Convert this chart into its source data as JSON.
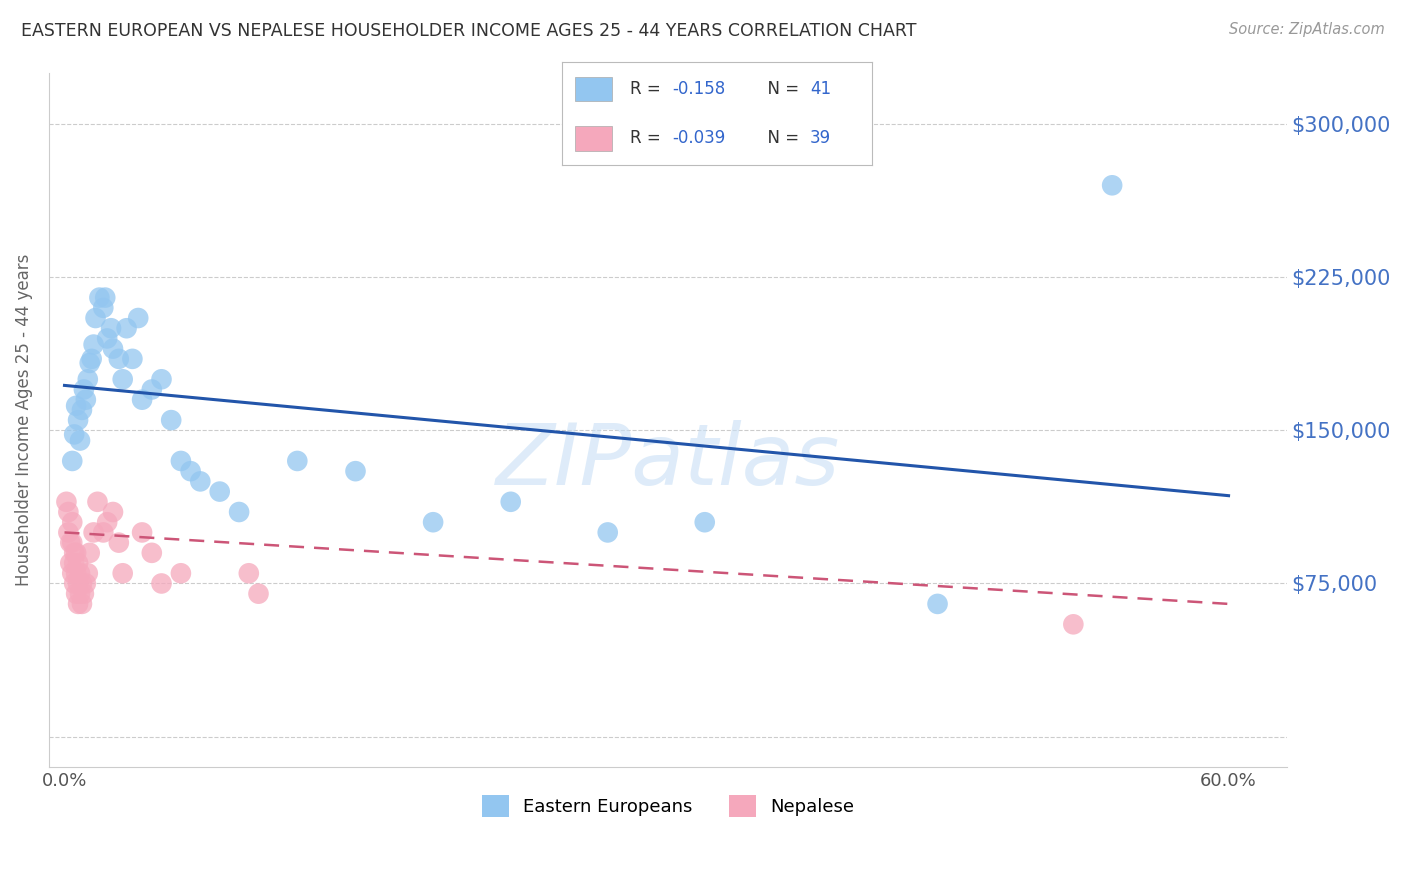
{
  "title": "EASTERN EUROPEAN VS NEPALESE HOUSEHOLDER INCOME AGES 25 - 44 YEARS CORRELATION CHART",
  "source": "Source: ZipAtlas.com",
  "ylabel": "Householder Income Ages 25 - 44 years",
  "watermark": "ZIPatlas",
  "ytick_vals": [
    0,
    75000,
    150000,
    225000,
    300000
  ],
  "ytick_labels": [
    "",
    "$75,000",
    "$150,000",
    "$225,000",
    "$300,000"
  ],
  "xtick_positions": [
    0.0,
    0.1,
    0.2,
    0.3,
    0.4,
    0.5,
    0.6
  ],
  "xtick_labels": [
    "0.0%",
    "",
    "",
    "",
    "",
    "",
    "60.0%"
  ],
  "xlim": [
    -0.008,
    0.63
  ],
  "ylim": [
    -15000,
    325000
  ],
  "legend_row1": "R =  -0.158   N = 41",
  "legend_row2": "R =  -0.039   N = 39",
  "legend_color": "#3366cc",
  "blue_scatter_color": "#93c6f0",
  "pink_scatter_color": "#f5a8bc",
  "blue_line_color": "#2255aa",
  "pink_line_color": "#cc5577",
  "grid_color": "#cccccc",
  "right_label_color": "#4472c4",
  "title_color": "#333333",
  "source_color": "#999999",
  "ee_x": [
    0.004,
    0.005,
    0.006,
    0.007,
    0.008,
    0.009,
    0.01,
    0.011,
    0.012,
    0.013,
    0.014,
    0.015,
    0.016,
    0.018,
    0.02,
    0.021,
    0.022,
    0.024,
    0.025,
    0.028,
    0.03,
    0.032,
    0.035,
    0.038,
    0.04,
    0.045,
    0.05,
    0.055,
    0.06,
    0.065,
    0.07,
    0.08,
    0.09,
    0.12,
    0.15,
    0.19,
    0.23,
    0.28,
    0.33,
    0.45,
    0.54
  ],
  "ee_y": [
    135000,
    148000,
    162000,
    155000,
    145000,
    160000,
    170000,
    165000,
    175000,
    183000,
    185000,
    192000,
    205000,
    215000,
    210000,
    215000,
    195000,
    200000,
    190000,
    185000,
    175000,
    200000,
    185000,
    205000,
    165000,
    170000,
    175000,
    155000,
    135000,
    130000,
    125000,
    120000,
    110000,
    135000,
    130000,
    105000,
    115000,
    100000,
    105000,
    65000,
    270000
  ],
  "np_x": [
    0.001,
    0.002,
    0.002,
    0.003,
    0.003,
    0.004,
    0.004,
    0.004,
    0.005,
    0.005,
    0.005,
    0.006,
    0.006,
    0.006,
    0.007,
    0.007,
    0.007,
    0.008,
    0.008,
    0.009,
    0.009,
    0.01,
    0.011,
    0.012,
    0.013,
    0.015,
    0.017,
    0.02,
    0.022,
    0.025,
    0.028,
    0.03,
    0.04,
    0.045,
    0.05,
    0.06,
    0.095,
    0.1,
    0.52
  ],
  "np_y": [
    115000,
    110000,
    100000,
    95000,
    85000,
    105000,
    95000,
    80000,
    90000,
    85000,
    75000,
    90000,
    80000,
    70000,
    85000,
    75000,
    65000,
    80000,
    70000,
    75000,
    65000,
    70000,
    75000,
    80000,
    90000,
    100000,
    115000,
    100000,
    105000,
    110000,
    95000,
    80000,
    100000,
    90000,
    75000,
    80000,
    80000,
    70000,
    55000
  ]
}
